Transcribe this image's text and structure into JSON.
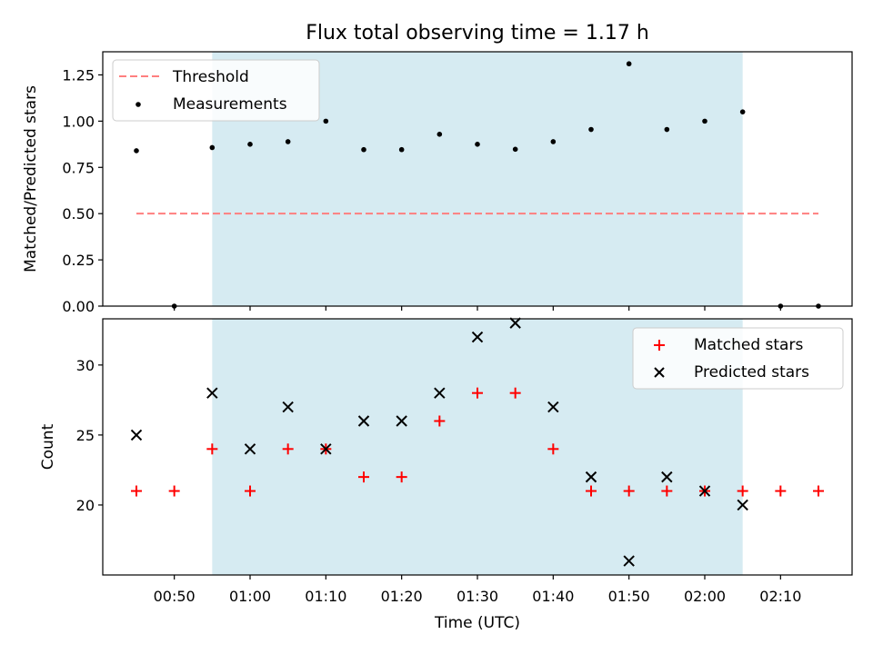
{
  "chart_data": [
    {
      "type": "scatter",
      "title": "Flux total observing time = 1.17 h",
      "xlabel": "",
      "ylabel": "Matched/Predicted stars",
      "ylim": [
        0,
        1.375
      ],
      "yticks": [
        "0.00",
        "0.25",
        "0.50",
        "0.75",
        "1.00",
        "1.25"
      ],
      "ytick_values": [
        0,
        0.25,
        0.5,
        0.75,
        1.0,
        1.25
      ],
      "legend": {
        "placement": "top-left",
        "entries": [
          "Threshold",
          "Measurements"
        ]
      },
      "shaded_interval": {
        "from": "00:55",
        "to": "02:05",
        "color": "#add8e6"
      },
      "series": [
        {
          "name": "Measurements",
          "x": [
            "00:45",
            "00:50",
            "00:55",
            "01:00",
            "01:05",
            "01:10",
            "01:15",
            "01:20",
            "01:25",
            "01:30",
            "01:35",
            "01:40",
            "01:45",
            "01:50",
            "01:55",
            "02:00",
            "02:05",
            "02:10",
            "02:15"
          ],
          "values": [
            0.84,
            0.0,
            0.857,
            0.875,
            0.889,
            1.0,
            0.846,
            0.846,
            0.929,
            0.875,
            0.848,
            0.889,
            0.955,
            1.31,
            0.955,
            1.0,
            1.05,
            0.0,
            0.0
          ],
          "color": "#000000"
        },
        {
          "name": "Threshold",
          "x": [
            "00:45",
            "02:15"
          ],
          "values": [
            0.5,
            0.5
          ],
          "color": "#ff7f7f"
        }
      ]
    },
    {
      "type": "scatter",
      "xlabel": "Time (UTC)",
      "ylabel": "Count",
      "ylim": [
        15,
        33.3
      ],
      "yticks": [
        "20",
        "25",
        "30"
      ],
      "ytick_values": [
        20,
        25,
        30
      ],
      "xticks": [
        "00:50",
        "01:00",
        "01:10",
        "01:20",
        "01:30",
        "01:40",
        "01:50",
        "02:00",
        "02:10"
      ],
      "legend": {
        "placement": "top-right",
        "entries": [
          "Matched stars",
          "Predicted stars"
        ]
      },
      "shaded_interval": {
        "from": "00:55",
        "to": "02:05",
        "color": "#add8e6"
      },
      "series": [
        {
          "name": "Matched stars",
          "x": [
            "00:45",
            "00:50",
            "00:55",
            "01:00",
            "01:05",
            "01:10",
            "01:15",
            "01:20",
            "01:25",
            "01:30",
            "01:35",
            "01:40",
            "01:45",
            "01:50",
            "01:55",
            "02:00",
            "02:05",
            "02:10",
            "02:15"
          ],
          "values": [
            21,
            21,
            24,
            21,
            24,
            24,
            22,
            22,
            26,
            28,
            28,
            24,
            21,
            21,
            21,
            21,
            21,
            21,
            21
          ],
          "color": "#ff0000",
          "marker": "plus"
        },
        {
          "name": "Predicted stars",
          "x": [
            "00:45",
            "00:55",
            "01:00",
            "01:05",
            "01:10",
            "01:15",
            "01:20",
            "01:25",
            "01:30",
            "01:35",
            "01:40",
            "01:45",
            "01:50",
            "01:55",
            "02:00",
            "02:05"
          ],
          "values": [
            25,
            28,
            24,
            27,
            24,
            26,
            26,
            28,
            32,
            33,
            27,
            22,
            16,
            22,
            21,
            20
          ],
          "color": "#000000",
          "marker": "x"
        }
      ]
    }
  ]
}
